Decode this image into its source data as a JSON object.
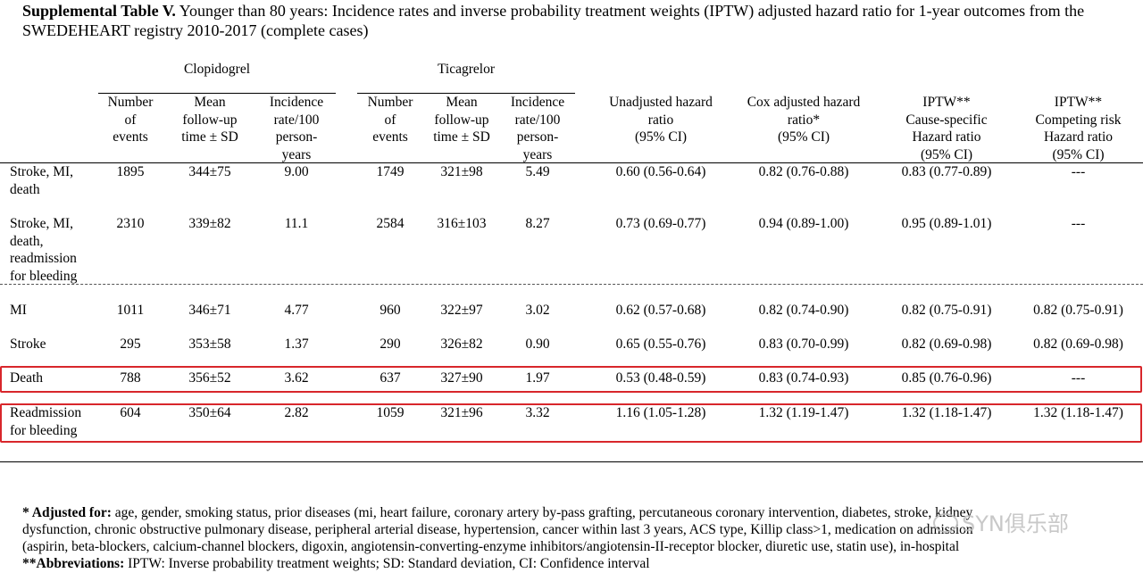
{
  "caption": {
    "label": "Supplemental Table V.",
    "text": "Younger than 80 years: Incidence rates and inverse probability treatment weights (IPTW) adjusted hazard ratio for 1-year outcomes from the SWEDEHEART registry 2010-2017 (complete cases)"
  },
  "groups": {
    "clopidogrel": "Clopidogrel",
    "ticagrelor": "Ticagrelor"
  },
  "headers": {
    "events": [
      "Number",
      "of",
      "events"
    ],
    "followup": [
      "Mean",
      "follow-up",
      "time ± SD"
    ],
    "incidence": [
      "Incidence",
      "rate/100",
      "person-",
      "years"
    ],
    "unadjusted": [
      "Unadjusted hazard",
      "ratio",
      "(95% CI)"
    ],
    "cox": [
      "Cox adjusted hazard",
      "ratio*",
      "(95% CI)"
    ],
    "iptw_cause": [
      "IPTW**",
      "Cause-specific",
      "Hazard ratio",
      "(95% CI)"
    ],
    "iptw_competing": [
      "IPTW**",
      "Competing risk",
      "Hazard ratio",
      "(95% CI)"
    ]
  },
  "rows": [
    {
      "label": [
        "Stroke, MI,",
        "death"
      ],
      "c_events": "1895",
      "c_followup": "344±75",
      "c_rate": "9.00",
      "t_events": "1749",
      "t_followup": "321±98",
      "t_rate": "5.49",
      "unadj": "0.60 (0.56-0.64)",
      "cox": "0.82 (0.76-0.88)",
      "iptw_cs": "0.83 (0.77-0.89)",
      "iptw_cr": "---"
    },
    {
      "label": [
        "Stroke, MI,",
        "death,",
        "readmission",
        "for bleeding"
      ],
      "c_events": "2310",
      "c_followup": "339±82",
      "c_rate": "11.1",
      "t_events": "2584",
      "t_followup": "316±103",
      "t_rate": "8.27",
      "unadj": "0.73 (0.69-0.77)",
      "cox": "0.94 (0.89-1.00)",
      "iptw_cs": "0.95 (0.89-1.01)",
      "iptw_cr": "---"
    },
    {
      "label": [
        "MI"
      ],
      "c_events": "1011",
      "c_followup": "346±71",
      "c_rate": "4.77",
      "t_events": "960",
      "t_followup": "322±97",
      "t_rate": "3.02",
      "unadj": "0.62 (0.57-0.68)",
      "cox": "0.82 (0.74-0.90)",
      "iptw_cs": "0.82 (0.75-0.91)",
      "iptw_cr": "0.82 (0.75-0.91)"
    },
    {
      "label": [
        "Stroke"
      ],
      "c_events": "295",
      "c_followup": "353±58",
      "c_rate": "1.37",
      "t_events": "290",
      "t_followup": "326±82",
      "t_rate": "0.90",
      "unadj": "0.65 (0.55-0.76)",
      "cox": "0.83 (0.70-0.99)",
      "iptw_cs": "0.82 (0.69-0.98)",
      "iptw_cr": "0.82 (0.69-0.98)"
    },
    {
      "label": [
        "Death"
      ],
      "c_events": "788",
      "c_followup": "356±52",
      "c_rate": "3.62",
      "t_events": "637",
      "t_followup": "327±90",
      "t_rate": "1.97",
      "unadj": "0.53 (0.48-0.59)",
      "cox": "0.83 (0.74-0.93)",
      "iptw_cs": "0.85 (0.76-0.96)",
      "iptw_cr": "---"
    },
    {
      "label": [
        "Readmission",
        "for bleeding"
      ],
      "c_events": "604",
      "c_followup": "350±64",
      "c_rate": "2.82",
      "t_events": "1059",
      "t_followup": "321±96",
      "t_rate": "3.32",
      "unadj": "1.16 (1.05-1.28)",
      "cox": "1.32 (1.19-1.47)",
      "iptw_cs": "1.32 (1.18-1.47)",
      "iptw_cr": "1.32 (1.18-1.47)"
    }
  ],
  "footnotes": {
    "adjusted_label": "* Adjusted for:",
    "adjusted_line1": "age, gender, smoking status, prior diseases (mi, heart failure, coronary artery by-pass grafting, percutaneous coronary intervention, diabetes, stroke, kidney",
    "adjusted_line2": "dysfunction, chronic obstructive pulmonary disease, peripheral arterial disease, hypertension, cancer within last 3 years, ACS type, Killip class>1, medication on admission",
    "adjusted_line3": "(aspirin, beta-blockers, calcium-channel blockers, digoxin, angiotensin-converting-enzyme inhibitors/angiotensin-II-receptor blocker, diuretic use, statin use), in-hospital",
    "abbrev_label": "**Abbreviations:",
    "abbrev_text": "IPTW: Inverse probability treatment weights; SD: Standard deviation, CI: Confidence interval"
  },
  "watermark": "SYN俱乐部",
  "highlight_color": "#d8262b"
}
